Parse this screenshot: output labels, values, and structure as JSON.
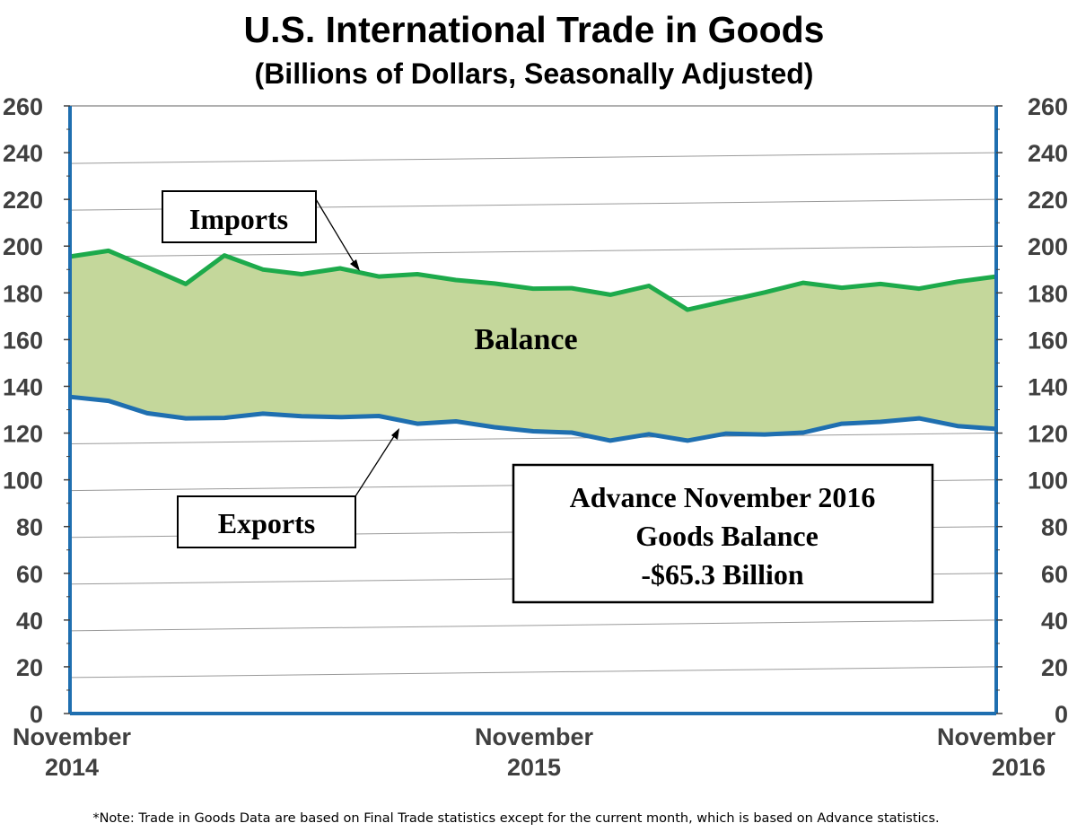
{
  "chart_data": {
    "type": "area",
    "title": "U.S. International Trade in Goods",
    "subtitle": "(Billions of Dollars, Seasonally Adjusted)",
    "ylim": [
      0,
      260
    ],
    "yticks": [
      "0",
      "20",
      "40",
      "60",
      "80",
      "100",
      "120",
      "140",
      "160",
      "180",
      "200",
      "220",
      "240",
      "260"
    ],
    "xtick_labels": [
      {
        "line1": "November",
        "line2": "2014"
      },
      {
        "line1": "November",
        "line2": "2015"
      },
      {
        "line1": "November",
        "line2": "2016"
      }
    ],
    "x": [
      "Nov 2014",
      "Dec 2014",
      "Jan 2015",
      "Feb 2015",
      "Mar 2015",
      "Apr 2015",
      "May 2015",
      "Jun 2015",
      "Jul 2015",
      "Aug 2015",
      "Sep 2015",
      "Oct 2015",
      "Nov 2015",
      "Dec 2015",
      "Jan 2016",
      "Feb 2016",
      "Mar 2016",
      "Apr 2016",
      "May 2016",
      "Jun 2016",
      "Jul 2016",
      "Aug 2016",
      "Sep 2016",
      "Oct 2016",
      "Nov 2016"
    ],
    "series": [
      {
        "name": "Imports",
        "color": "#1DAA4B",
        "values": [
          195.5,
          198.0,
          191.0,
          183.8,
          196.0,
          190.0,
          188.0,
          190.5,
          187.0,
          188.0,
          185.5,
          184.0,
          181.8,
          182.0,
          179.2,
          183.0,
          172.8,
          176.5,
          180.2,
          184.3,
          182.2,
          183.8,
          181.8,
          184.8,
          187.0
        ]
      },
      {
        "name": "Exports",
        "color": "#1F6FB0",
        "values": [
          135.5,
          133.8,
          128.5,
          126.3,
          126.5,
          128.3,
          127.2,
          126.8,
          127.3,
          124.0,
          125.0,
          122.5,
          120.8,
          120.2,
          116.8,
          119.5,
          116.8,
          119.8,
          119.4,
          120.2,
          124.0,
          124.8,
          126.3,
          123.0,
          121.8
        ]
      }
    ],
    "area_label": "Balance",
    "area_color": "#C4D79B",
    "grid": true,
    "callouts": {
      "imports": "Imports",
      "exports": "Exports",
      "summary": [
        "Advance November 2016",
        "Goods Balance",
        "-$65.3 Billion"
      ]
    }
  },
  "note": "*Note: Trade in Goods Data are based on Final Trade statistics except for the current month, which is based on Advance statistics."
}
